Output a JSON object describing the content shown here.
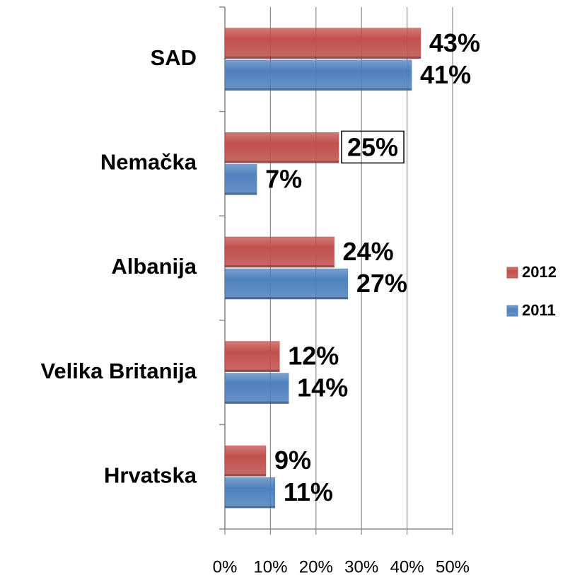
{
  "chart_data": {
    "type": "hbar",
    "categories": [
      "SAD",
      "Nemačka",
      "Albanija",
      "Velika Britanija",
      "Hrvatska"
    ],
    "series": [
      {
        "name": "2012",
        "color": "#c0504d",
        "values": [
          43,
          25,
          24,
          12,
          9
        ],
        "value_labels": [
          "43%",
          "25%",
          "24%",
          "12%",
          "9%"
        ],
        "boxed_labels": [
          1
        ]
      },
      {
        "name": "2011",
        "color": "#4f81bd",
        "values": [
          41,
          7,
          27,
          14,
          11
        ],
        "value_labels": [
          "41%",
          "7%",
          "27%",
          "14%",
          "11%"
        ]
      }
    ],
    "xlim": [
      0,
      50
    ],
    "xticks": [
      {
        "value": 0,
        "label": "0%"
      },
      {
        "value": 10,
        "label": "10%"
      },
      {
        "value": 20,
        "label": "20%"
      },
      {
        "value": 30,
        "label": "30%"
      },
      {
        "value": 40,
        "label": "40%"
      },
      {
        "value": 50,
        "label": "50%"
      }
    ],
    "grid": true,
    "legend": "right"
  }
}
